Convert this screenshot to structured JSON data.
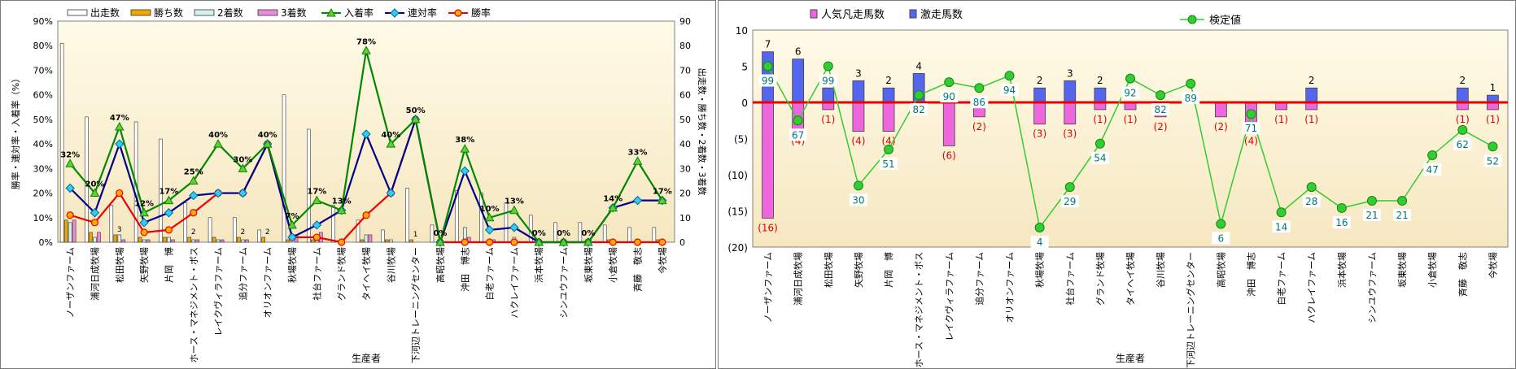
{
  "chart_data": [
    {
      "type": "bar",
      "xlabel": "生産者",
      "ylabel": "勝率・連対率・入着率（%）",
      "y2label": "出走数・勝ち数・2着数・3着数",
      "ylim": [
        0,
        90
      ],
      "y2lim": [
        0,
        90
      ],
      "yticks": [
        "0%",
        "10%",
        "20%",
        "30%",
        "40%",
        "50%",
        "60%",
        "70%",
        "80%",
        "90%"
      ],
      "y2ticks": [
        "0",
        "10",
        "20",
        "30",
        "40",
        "50",
        "60",
        "70",
        "80",
        "90"
      ],
      "legend_position": "top",
      "categories": [
        "ノーザンファーム",
        "浦河日成牧場",
        "松田牧場",
        "矢野牧場",
        "片岡　博",
        "ホース・マネジメント・ボス",
        "レイクヴィラファーム",
        "追分ファーム",
        "オリオンファーム",
        "秋場牧場",
        "社台ファーム",
        "グランド牧場",
        "タイヘイ牧場",
        "谷川牧場",
        "下河辺トレーニングセンター",
        "高昭牧場",
        "沖田　博志",
        "白老ファーム",
        "ハクレイファーム",
        "浜本牧場",
        "シンユウファーム",
        "坂東牧場",
        "小倉牧場",
        "斉藤　敬志",
        "今牧場"
      ],
      "series": [
        {
          "name": "出走数",
          "kind": "bar",
          "axis": "right",
          "color": "#ffffff",
          "values": [
            81,
            51,
            15,
            49,
            42,
            16,
            10,
            10,
            5,
            60,
            46,
            15,
            9,
            5,
            22,
            7,
            21,
            20,
            16,
            11,
            8,
            8,
            7,
            6,
            6
          ]
        },
        {
          "name": "勝ち数",
          "kind": "bar",
          "axis": "right",
          "color": "#f0a800",
          "values": [
            9,
            4,
            3,
            2,
            2,
            2,
            2,
            2,
            2,
            1,
            1,
            0,
            1,
            1,
            1,
            0,
            0,
            0,
            0,
            0,
            0,
            0,
            1,
            0,
            1
          ]
        },
        {
          "name": "2着数",
          "kind": "bar",
          "axis": "right",
          "color": "#d8f0f0",
          "values": [
            8,
            2,
            3,
            1,
            2,
            1,
            1,
            1,
            0,
            0,
            1,
            1,
            3,
            1,
            0,
            0,
            6,
            1,
            2,
            0,
            0,
            0,
            0,
            1,
            0
          ]
        },
        {
          "name": "3着数",
          "kind": "bar",
          "axis": "right",
          "color": "#ee88dd",
          "values": [
            9,
            4,
            1,
            1,
            1,
            1,
            1,
            1,
            0,
            3,
            4,
            0,
            3,
            0,
            0,
            0,
            2,
            1,
            0,
            0,
            0,
            0,
            0,
            0,
            0
          ]
        },
        {
          "name": "入着率",
          "kind": "line",
          "axis": "left",
          "color": "#008800",
          "marker": "triangle",
          "values": [
            32,
            20,
            47,
            12,
            17,
            25,
            40,
            30,
            40,
            7,
            17,
            13,
            78,
            40,
            50,
            0,
            38,
            10,
            13,
            0,
            0,
            0,
            14,
            33,
            17
          ],
          "labels": [
            "32%",
            "20%",
            "47%",
            "12%",
            "17%",
            "25%",
            "40%",
            "30%",
            "40%",
            "7%",
            "17%",
            "13%",
            "78%",
            "40%",
            "50%",
            "0%",
            "38%",
            "10%",
            "13%",
            "0%",
            "0%",
            "0%",
            "14%",
            "33%",
            "17%"
          ]
        },
        {
          "name": "連対率",
          "kind": "line",
          "axis": "left",
          "color": "#000088",
          "marker": "diamond",
          "values": [
            22,
            12,
            40,
            8,
            12,
            19,
            20,
            20,
            40,
            2,
            7,
            13,
            44,
            20,
            50,
            0,
            29,
            5,
            6,
            0,
            0,
            0,
            14,
            17,
            17
          ]
        },
        {
          "name": "勝率",
          "kind": "line",
          "axis": "left",
          "color": "#ee0000",
          "marker": "circle",
          "values": [
            11,
            8,
            20,
            4,
            5,
            12,
            20,
            20,
            40,
            2,
            2,
            0,
            11,
            20,
            50,
            0,
            0,
            0,
            0,
            0,
            0,
            0,
            0,
            0,
            0
          ]
        }
      ],
      "bar_labels": [
        "",
        "",
        "3",
        "",
        "",
        "2",
        "",
        "2",
        "2",
        "",
        "",
        "",
        "",
        "",
        "1",
        "",
        "",
        "",
        "",
        "",
        "",
        "",
        "",
        "",
        ""
      ]
    },
    {
      "type": "bar",
      "xlabel": "生産者",
      "ylim": [
        -20,
        10
      ],
      "yticks": [
        "(20)",
        "(15)",
        "(10)",
        "(5)",
        "0",
        "5",
        "10"
      ],
      "legend_position": "top",
      "categories": [
        "ノーザンファーム",
        "浦河日成牧場",
        "松田牧場",
        "矢野牧場",
        "片岡　博",
        "ホース・マネジメント・ボス",
        "レイクヴィラファーム",
        "追分ファーム",
        "オリオンファーム",
        "秋場牧場",
        "社台ファーム",
        "グランド牧場",
        "タイヘイ牧場",
        "谷川牧場",
        "下河辺トレーニングセンター",
        "高昭牧場",
        "沖田　博志",
        "白老ファーム",
        "ハクレイファーム",
        "浜本牧場",
        "シンユウファーム",
        "坂東牧場",
        "小倉牧場",
        "斉藤　敬志",
        "今牧場"
      ],
      "series": [
        {
          "name": "人気凡走馬数",
          "kind": "bar",
          "color": "#ee66dd",
          "values": [
            -16,
            -4,
            -1,
            -4,
            -4,
            0,
            -6,
            -2,
            0,
            -3,
            -3,
            -1,
            -1,
            -2,
            0,
            -2,
            -4,
            -1,
            -1,
            0,
            0,
            0,
            0,
            -1,
            -1
          ],
          "labels": [
            "(16)",
            "(4)",
            "(1)",
            "(4)",
            "(4)",
            "",
            "(6)",
            "(2)",
            "",
            "(3)",
            "(3)",
            "(1)",
            "(1)",
            "(2)",
            "",
            "(2)",
            "(4)",
            "(1)",
            "(1)",
            "",
            "",
            "",
            "",
            "(1)",
            "(1)"
          ]
        },
        {
          "name": "激走馬数",
          "kind": "bar",
          "color": "#5566ee",
          "values": [
            7,
            6,
            2,
            3,
            2,
            4,
            0,
            0,
            0,
            2,
            3,
            2,
            0,
            0,
            0,
            0,
            0,
            0,
            2,
            0,
            0,
            0,
            0,
            2,
            1
          ],
          "labels": [
            "7",
            "6",
            "",
            "3",
            "2",
            "4",
            "",
            "",
            "",
            "2",
            "3",
            "2",
            "",
            "",
            "",
            "",
            "",
            "",
            "2",
            "",
            "",
            "",
            "",
            "2",
            "1"
          ]
        },
        {
          "name": "検定値",
          "kind": "line",
          "color": "#33cc33",
          "marker": "circle",
          "values": [
            5,
            -2.5,
            5,
            -11.5,
            -6.5,
            1,
            2.8,
            2,
            3.7,
            -17.3,
            -11.7,
            -5.7,
            3.3,
            1,
            2.6,
            -16.8,
            -1.6,
            -15.2,
            -11.7,
            -14.6,
            -13.6,
            -13.6,
            -7.3,
            -3.8,
            -6.1
          ],
          "labels": [
            "99",
            "67",
            "99",
            "30",
            "51",
            "82",
            "90",
            "86",
            "94",
            "4",
            "29",
            "54",
            "92",
            "82",
            "89",
            "6",
            "71",
            "14",
            "28",
            "16",
            "21",
            "21",
            "47",
            "62",
            "52"
          ]
        }
      ]
    }
  ]
}
